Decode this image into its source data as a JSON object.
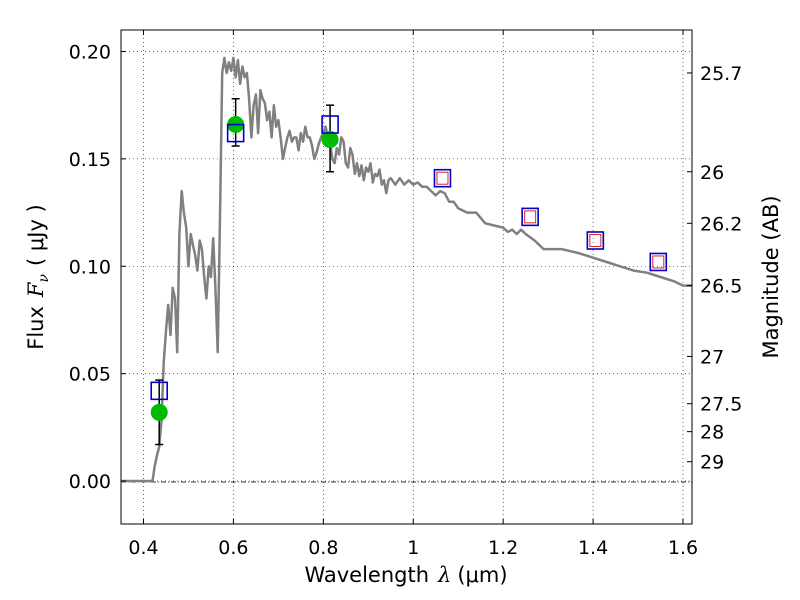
{
  "chart_data": {
    "type": "scatter",
    "xlabel_prefix": "Wavelength",
    "xlabel_symbol": "λ",
    "xlabel_unit": "(μm)",
    "ylabel_prefix": "Flux",
    "ylabel_symbol": "F",
    "ylabel_subscript": "ν",
    "ylabel_unit": "( μJy )",
    "y2label": "Magnitude (AB)",
    "xlim": [
      0.35,
      1.62
    ],
    "ylim": [
      -0.02,
      0.21
    ],
    "x_ticks": [
      0.4,
      0.6,
      0.8,
      1.0,
      1.2,
      1.4,
      1.6
    ],
    "x_tick_labels": [
      "0.4",
      "0.6",
      "0.8",
      "1",
      "1.2",
      "1.4",
      "1.6"
    ],
    "y_ticks": [
      0.0,
      0.05,
      0.1,
      0.15,
      0.2
    ],
    "y_tick_labels": [
      "0.00",
      "0.05",
      "0.10",
      "0.15",
      "0.20"
    ],
    "magnitude_ticks": [
      {
        "label": "25.7",
        "flux": 0.19
      },
      {
        "label": "26",
        "flux": 0.144
      },
      {
        "label": "26.2",
        "flux": 0.12
      },
      {
        "label": "26.5",
        "flux": 0.091
      },
      {
        "label": "27",
        "flux": 0.058
      },
      {
        "label": "27.5",
        "flux": 0.036
      },
      {
        "label": "28",
        "flux": 0.023
      },
      {
        "label": "29",
        "flux": 0.009
      }
    ],
    "grid": true,
    "colors": {
      "sed": "#808080",
      "observed": "#00bb00",
      "errorbar": "#000000",
      "model_box": "#0000cc",
      "model_inner": "#dd2222"
    },
    "series": [
      {
        "name": "model SED",
        "kind": "line",
        "points": [
          [
            0.35,
            0.0
          ],
          [
            0.42,
            0.0
          ],
          [
            0.425,
            0.007
          ],
          [
            0.43,
            0.012
          ],
          [
            0.435,
            0.016
          ],
          [
            0.44,
            0.028
          ],
          [
            0.445,
            0.055
          ],
          [
            0.45,
            0.07
          ],
          [
            0.455,
            0.082
          ],
          [
            0.46,
            0.068
          ],
          [
            0.465,
            0.09
          ],
          [
            0.47,
            0.085
          ],
          [
            0.475,
            0.06
          ],
          [
            0.48,
            0.115
          ],
          [
            0.485,
            0.135
          ],
          [
            0.49,
            0.125
          ],
          [
            0.495,
            0.118
          ],
          [
            0.5,
            0.1
          ],
          [
            0.505,
            0.115
          ],
          [
            0.51,
            0.11
          ],
          [
            0.515,
            0.105
          ],
          [
            0.52,
            0.098
          ],
          [
            0.525,
            0.112
          ],
          [
            0.53,
            0.108
          ],
          [
            0.535,
            0.095
          ],
          [
            0.54,
            0.085
          ],
          [
            0.545,
            0.1
          ],
          [
            0.55,
            0.095
          ],
          [
            0.555,
            0.113
          ],
          [
            0.56,
            0.09
          ],
          [
            0.565,
            0.06
          ],
          [
            0.57,
            0.12
          ],
          [
            0.575,
            0.19
          ],
          [
            0.58,
            0.197
          ],
          [
            0.585,
            0.19
          ],
          [
            0.59,
            0.195
          ],
          [
            0.595,
            0.191
          ],
          [
            0.6,
            0.197
          ],
          [
            0.605,
            0.188
          ],
          [
            0.61,
            0.196
          ],
          [
            0.615,
            0.185
          ],
          [
            0.62,
            0.193
          ],
          [
            0.625,
            0.188
          ],
          [
            0.63,
            0.19
          ],
          [
            0.635,
            0.178
          ],
          [
            0.64,
            0.16
          ],
          [
            0.645,
            0.175
          ],
          [
            0.65,
            0.18
          ],
          [
            0.655,
            0.162
          ],
          [
            0.66,
            0.182
          ],
          [
            0.665,
            0.178
          ],
          [
            0.67,
            0.176
          ],
          [
            0.675,
            0.168
          ],
          [
            0.68,
            0.172
          ],
          [
            0.685,
            0.16
          ],
          [
            0.69,
            0.175
          ],
          [
            0.695,
            0.165
          ],
          [
            0.7,
            0.168
          ],
          [
            0.705,
            0.16
          ],
          [
            0.71,
            0.15
          ],
          [
            0.715,
            0.155
          ],
          [
            0.72,
            0.16
          ],
          [
            0.725,
            0.163
          ],
          [
            0.73,
            0.158
          ],
          [
            0.735,
            0.16
          ],
          [
            0.74,
            0.16
          ],
          [
            0.745,
            0.154
          ],
          [
            0.75,
            0.162
          ],
          [
            0.755,
            0.158
          ],
          [
            0.76,
            0.165
          ],
          [
            0.765,
            0.16
          ],
          [
            0.77,
            0.16
          ],
          [
            0.775,
            0.156
          ],
          [
            0.78,
            0.15
          ],
          [
            0.785,
            0.153
          ],
          [
            0.79,
            0.157
          ],
          [
            0.795,
            0.16
          ],
          [
            0.8,
            0.162
          ],
          [
            0.805,
            0.165
          ],
          [
            0.81,
            0.16
          ],
          [
            0.815,
            0.158
          ],
          [
            0.82,
            0.15
          ],
          [
            0.825,
            0.148
          ],
          [
            0.83,
            0.155
          ],
          [
            0.835,
            0.152
          ],
          [
            0.84,
            0.16
          ],
          [
            0.845,
            0.158
          ],
          [
            0.85,
            0.148
          ],
          [
            0.855,
            0.146
          ],
          [
            0.86,
            0.155
          ],
          [
            0.865,
            0.152
          ],
          [
            0.87,
            0.143
          ],
          [
            0.875,
            0.148
          ],
          [
            0.88,
            0.142
          ],
          [
            0.885,
            0.147
          ],
          [
            0.89,
            0.14
          ],
          [
            0.895,
            0.146
          ],
          [
            0.9,
            0.144
          ],
          [
            0.905,
            0.148
          ],
          [
            0.91,
            0.139
          ],
          [
            0.915,
            0.143
          ],
          [
            0.92,
            0.142
          ],
          [
            0.925,
            0.145
          ],
          [
            0.93,
            0.138
          ],
          [
            0.935,
            0.14
          ],
          [
            0.94,
            0.134
          ],
          [
            0.945,
            0.14
          ],
          [
            0.95,
            0.141
          ],
          [
            0.96,
            0.138
          ],
          [
            0.97,
            0.141
          ],
          [
            0.98,
            0.138
          ],
          [
            0.99,
            0.14
          ],
          [
            1.0,
            0.138
          ],
          [
            1.01,
            0.139
          ],
          [
            1.02,
            0.137
          ],
          [
            1.03,
            0.137
          ],
          [
            1.04,
            0.135
          ],
          [
            1.05,
            0.133
          ],
          [
            1.06,
            0.135
          ],
          [
            1.07,
            0.134
          ],
          [
            1.08,
            0.13
          ],
          [
            1.09,
            0.13
          ],
          [
            1.1,
            0.127
          ],
          [
            1.12,
            0.125
          ],
          [
            1.14,
            0.125
          ],
          [
            1.16,
            0.12
          ],
          [
            1.18,
            0.119
          ],
          [
            1.2,
            0.118
          ],
          [
            1.21,
            0.116
          ],
          [
            1.22,
            0.117
          ],
          [
            1.23,
            0.115
          ],
          [
            1.24,
            0.117
          ],
          [
            1.25,
            0.115
          ],
          [
            1.27,
            0.112
          ],
          [
            1.29,
            0.108
          ],
          [
            1.31,
            0.108
          ],
          [
            1.33,
            0.108
          ],
          [
            1.35,
            0.107
          ],
          [
            1.37,
            0.106
          ],
          [
            1.4,
            0.104
          ],
          [
            1.43,
            0.102
          ],
          [
            1.46,
            0.1
          ],
          [
            1.49,
            0.098
          ],
          [
            1.52,
            0.097
          ],
          [
            1.55,
            0.095
          ],
          [
            1.58,
            0.093
          ],
          [
            1.6,
            0.091
          ],
          [
            1.62,
            0.091
          ]
        ]
      },
      {
        "name": "observed photometry",
        "kind": "points",
        "points": [
          {
            "x": 0.435,
            "y": 0.032,
            "err_low": 0.017,
            "err_high": 0.047
          },
          {
            "x": 0.605,
            "y": 0.166,
            "err_low": 0.156,
            "err_high": 0.178
          },
          {
            "x": 0.815,
            "y": 0.159,
            "err_low": 0.144,
            "err_high": 0.175
          }
        ]
      },
      {
        "name": "model photometry",
        "kind": "boxes",
        "points": [
          {
            "x": 0.435,
            "y": 0.042,
            "inner": false
          },
          {
            "x": 0.605,
            "y": 0.162,
            "inner": false
          },
          {
            "x": 0.815,
            "y": 0.166,
            "inner": false
          },
          {
            "x": 1.065,
            "y": 0.141,
            "inner": true
          },
          {
            "x": 1.26,
            "y": 0.123,
            "inner": true
          },
          {
            "x": 1.405,
            "y": 0.112,
            "inner": true
          },
          {
            "x": 1.545,
            "y": 0.102,
            "inner": true
          }
        ]
      }
    ]
  }
}
